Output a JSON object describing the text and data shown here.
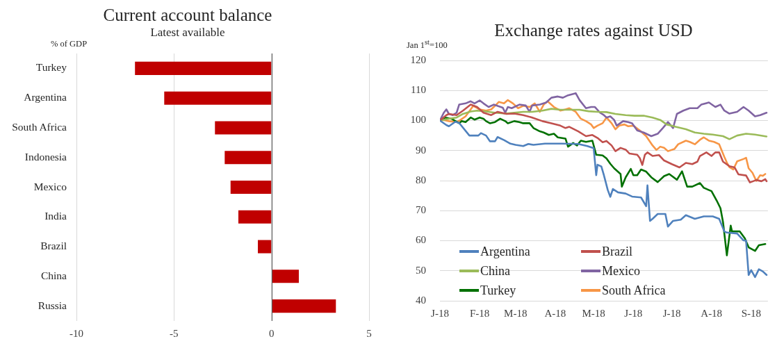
{
  "chart_data": [
    {
      "type": "bar",
      "orientation": "horizontal",
      "title": "Current account balance",
      "subtitle": "Latest available",
      "xlabel": "% of GDP",
      "categories": [
        "Turkey",
        "Argentina",
        "South Africa",
        "Indonesia",
        "Mexico",
        "India",
        "Brazil",
        "China",
        "Russia"
      ],
      "values": [
        -7.0,
        -5.5,
        -2.9,
        -2.4,
        -2.1,
        -1.7,
        -0.7,
        1.4,
        3.3
      ],
      "color": "#c00000",
      "xlim": [
        -10,
        5
      ],
      "xticks": [
        -10,
        -5,
        0,
        5
      ],
      "grid": "x"
    },
    {
      "type": "line",
      "title": "Exchange rates against USD",
      "ylabel": "Jan 1$^{st}$=100",
      "xlim": [
        "2018-01-01",
        "2018-09-14"
      ],
      "xticks": [
        {
          "value": "2018-01-01",
          "label": "J-18"
        },
        {
          "value": "2018-02-01",
          "label": "F-18"
        },
        {
          "value": "2018-03-01",
          "label": "M-18"
        },
        {
          "value": "2018-04-01",
          "label": "A-18"
        },
        {
          "value": "2018-05-01",
          "label": "M-18"
        },
        {
          "value": "2018-06-01",
          "label": "J-18"
        },
        {
          "value": "2018-07-01",
          "label": "J-18"
        },
        {
          "value": "2018-08-01",
          "label": "A-18"
        },
        {
          "value": "2018-09-01",
          "label": "S-18"
        }
      ],
      "ylim": [
        40,
        120
      ],
      "yticks": [
        40,
        50,
        60,
        70,
        80,
        90,
        100,
        110,
        120
      ],
      "grid": "y",
      "legend": "bottom left",
      "series": [
        {
          "name": "Argentina",
          "color": "#4f81bd",
          "x": [
            "2018-01-01",
            "2018-01-06",
            "2018-01-08",
            "2018-01-13",
            "2018-01-16",
            "2018-01-24",
            "2018-01-31",
            "2018-02-02",
            "2018-02-06",
            "2018-02-09",
            "2018-02-13",
            "2018-02-15",
            "2018-02-20",
            "2018-02-25",
            "2018-03-01",
            "2018-03-07",
            "2018-03-11",
            "2018-03-15",
            "2018-03-24",
            "2018-04-06",
            "2018-04-19",
            "2018-04-26",
            "2018-05-01",
            "2018-05-03",
            "2018-05-04",
            "2018-05-07",
            "2018-05-09",
            "2018-05-12",
            "2018-05-14",
            "2018-05-16",
            "2018-05-20",
            "2018-05-26",
            "2018-05-31",
            "2018-06-07",
            "2018-06-11",
            "2018-06-12",
            "2018-06-14",
            "2018-06-16",
            "2018-06-20",
            "2018-06-26",
            "2018-06-28",
            "2018-07-02",
            "2018-07-08",
            "2018-07-12",
            "2018-07-19",
            "2018-07-26",
            "2018-08-02",
            "2018-08-07",
            "2018-08-11",
            "2018-08-13",
            "2018-08-21",
            "2018-08-26",
            "2018-08-28",
            "2018-08-30",
            "2018-09-01",
            "2018-09-04",
            "2018-09-07",
            "2018-09-10",
            "2018-09-13"
          ],
          "values": [
            100,
            98.5,
            98.1,
            99.6,
            99.2,
            95,
            95,
            95.8,
            95,
            93.1,
            93.1,
            94.5,
            93.5,
            92.3,
            91.9,
            91.5,
            92.2,
            91.9,
            92.3,
            92.3,
            92.2,
            91.5,
            90.8,
            81.8,
            85.3,
            84.7,
            81.8,
            76.9,
            74.6,
            77.2,
            76.1,
            75.7,
            74.7,
            74.4,
            71.5,
            78.4,
            66.6,
            67.3,
            68.9,
            68.9,
            64.7,
            66.6,
            67,
            68.5,
            67.3,
            68.1,
            68.1,
            67.3,
            63.1,
            62.7,
            62.4,
            60.1,
            60,
            48.6,
            50.2,
            47.9,
            50.5,
            49.8,
            48.6
          ]
        },
        {
          "name": "Brazil",
          "color": "#c0504d",
          "x": [
            "2018-01-01",
            "2018-01-06",
            "2018-01-08",
            "2018-01-14",
            "2018-01-19",
            "2018-01-25",
            "2018-01-30",
            "2018-02-04",
            "2018-02-10",
            "2018-02-15",
            "2018-02-22",
            "2018-02-28",
            "2018-03-07",
            "2018-03-14",
            "2018-03-22",
            "2018-03-29",
            "2018-04-05",
            "2018-04-09",
            "2018-04-12",
            "2018-04-19",
            "2018-04-25",
            "2018-04-30",
            "2018-05-04",
            "2018-05-08",
            "2018-05-11",
            "2018-05-15",
            "2018-05-18",
            "2018-05-22",
            "2018-05-26",
            "2018-05-29",
            "2018-06-04",
            "2018-06-06",
            "2018-06-08",
            "2018-06-10",
            "2018-06-12",
            "2018-06-16",
            "2018-06-21",
            "2018-06-25",
            "2018-07-01",
            "2018-07-07",
            "2018-07-12",
            "2018-07-17",
            "2018-07-21",
            "2018-07-23",
            "2018-07-28",
            "2018-08-01",
            "2018-08-04",
            "2018-08-07",
            "2018-08-10",
            "2018-08-15",
            "2018-08-19",
            "2018-08-22",
            "2018-08-28",
            "2018-08-31",
            "2018-09-05",
            "2018-09-09",
            "2018-09-12",
            "2018-09-13"
          ],
          "values": [
            100,
            101.8,
            102.2,
            101.8,
            103.3,
            105.3,
            104.5,
            102.6,
            101.8,
            102.9,
            102.2,
            102.3,
            101.8,
            101,
            99.8,
            99.1,
            98.3,
            97.5,
            97.9,
            96.4,
            94.8,
            95.2,
            94.2,
            92.8,
            93.2,
            91.7,
            89.8,
            90.9,
            90.3,
            89,
            88.6,
            87.5,
            85.2,
            88.6,
            89.4,
            88.2,
            88.5,
            86.7,
            85.5,
            84.4,
            85.9,
            85.5,
            86.3,
            88.2,
            89.4,
            88.2,
            89.4,
            89.4,
            86.3,
            84.8,
            84.4,
            82.1,
            81.7,
            79.4,
            80.2,
            79.8,
            80.5,
            79.8
          ]
        },
        {
          "name": "China",
          "color": "#9bbb59",
          "x": [
            "2018-01-01",
            "2018-01-08",
            "2018-01-14",
            "2018-01-19",
            "2018-01-25",
            "2018-01-30",
            "2018-02-06",
            "2018-02-13",
            "2018-02-21",
            "2018-02-28",
            "2018-03-07",
            "2018-03-14",
            "2018-03-22",
            "2018-03-29",
            "2018-04-05",
            "2018-04-12",
            "2018-04-20",
            "2018-04-27",
            "2018-05-04",
            "2018-05-11",
            "2018-05-18",
            "2018-05-26",
            "2018-06-02",
            "2018-06-09",
            "2018-06-16",
            "2018-06-22",
            "2018-06-27",
            "2018-07-04",
            "2018-07-12",
            "2018-07-19",
            "2018-07-26",
            "2018-08-02",
            "2018-08-10",
            "2018-08-15",
            "2018-08-21",
            "2018-08-28",
            "2018-09-04",
            "2018-09-13"
          ],
          "values": [
            100,
            100.6,
            101,
            102.2,
            103,
            103.3,
            103,
            102.6,
            102.3,
            102.6,
            102.9,
            102.9,
            103.3,
            103.9,
            103.6,
            103.6,
            103.6,
            103.1,
            102.9,
            102.8,
            102.2,
            101.8,
            101.6,
            101.6,
            101,
            100.2,
            98.7,
            97.9,
            97.1,
            96,
            95.6,
            95.3,
            94.8,
            93.8,
            95,
            95.6,
            95.3,
            94.7
          ]
        },
        {
          "name": "Mexico",
          "color": "#8064a2",
          "x": [
            "2018-01-01",
            "2018-01-04",
            "2018-01-06",
            "2018-01-08",
            "2018-01-11",
            "2018-01-14",
            "2018-01-16",
            "2018-01-21",
            "2018-01-25",
            "2018-01-28",
            "2018-02-01",
            "2018-02-04",
            "2018-02-08",
            "2018-02-12",
            "2018-02-19",
            "2018-02-21",
            "2018-02-23",
            "2018-02-26",
            "2018-03-04",
            "2018-03-09",
            "2018-03-12",
            "2018-03-14",
            "2018-03-20",
            "2018-03-25",
            "2018-03-29",
            "2018-04-03",
            "2018-04-07",
            "2018-04-11",
            "2018-04-17",
            "2018-04-20",
            "2018-04-25",
            "2018-04-29",
            "2018-05-02",
            "2018-05-06",
            "2018-05-09",
            "2018-05-11",
            "2018-05-14",
            "2018-05-17",
            "2018-05-19",
            "2018-05-24",
            "2018-05-28",
            "2018-05-31",
            "2018-06-04",
            "2018-06-09",
            "2018-06-15",
            "2018-06-20",
            "2018-06-24",
            "2018-06-28",
            "2018-07-02",
            "2018-07-05",
            "2018-07-10",
            "2018-07-15",
            "2018-07-21",
            "2018-07-24",
            "2018-07-30",
            "2018-08-04",
            "2018-08-08",
            "2018-08-11",
            "2018-08-15",
            "2018-08-21",
            "2018-08-26",
            "2018-08-30",
            "2018-09-04",
            "2018-09-08",
            "2018-09-13"
          ],
          "values": [
            100,
            102.6,
            103.7,
            102.2,
            101.8,
            102.6,
            105.3,
            105.7,
            106.4,
            105.7,
            106.7,
            105.7,
            104.5,
            105.3,
            104.3,
            102.6,
            104.5,
            104.1,
            105.3,
            105,
            102.9,
            105,
            105.3,
            106,
            107.6,
            108,
            107.6,
            108.4,
            109.1,
            106.8,
            104.1,
            104.5,
            104.5,
            102.6,
            101.8,
            101,
            101.4,
            100.2,
            98.3,
            99.8,
            99.5,
            99.1,
            96.7,
            96,
            94.8,
            95.6,
            97.5,
            99.5,
            97.5,
            102.2,
            103.3,
            104.1,
            104.1,
            105.3,
            106,
            104.5,
            105.3,
            103.3,
            102.3,
            102.9,
            104.5,
            103.3,
            101.4,
            101.8,
            102.6
          ]
        },
        {
          "name": "Turkey",
          "color": "#007000",
          "x": [
            "2018-01-01",
            "2018-01-05",
            "2018-01-10",
            "2018-01-16",
            "2018-01-18",
            "2018-01-21",
            "2018-01-25",
            "2018-01-28",
            "2018-02-01",
            "2018-02-04",
            "2018-02-06",
            "2018-02-09",
            "2018-02-13",
            "2018-02-17",
            "2018-02-21",
            "2018-02-23",
            "2018-02-28",
            "2018-03-04",
            "2018-03-07",
            "2018-03-12",
            "2018-03-15",
            "2018-03-20",
            "2018-03-23",
            "2018-03-27",
            "2018-03-31",
            "2018-04-03",
            "2018-04-09",
            "2018-04-11",
            "2018-04-15",
            "2018-04-18",
            "2018-04-21",
            "2018-04-25",
            "2018-04-30",
            "2018-05-03",
            "2018-05-08",
            "2018-05-11",
            "2018-05-14",
            "2018-05-17",
            "2018-05-22",
            "2018-05-23",
            "2018-05-26",
            "2018-05-30",
            "2018-06-01",
            "2018-06-04",
            "2018-06-07",
            "2018-06-11",
            "2018-06-15",
            "2018-06-20",
            "2018-06-25",
            "2018-06-29",
            "2018-07-05",
            "2018-07-09",
            "2018-07-13",
            "2018-07-17",
            "2018-07-23",
            "2018-07-26",
            "2018-08-01",
            "2018-08-05",
            "2018-08-08",
            "2018-08-10",
            "2018-08-13",
            "2018-08-16",
            "2018-08-17",
            "2018-08-23",
            "2018-08-27",
            "2018-08-30",
            "2018-09-04",
            "2018-09-07",
            "2018-09-12"
          ],
          "values": [
            100,
            101,
            100.6,
            99.1,
            99.8,
            99.5,
            101,
            100.3,
            101,
            100.6,
            99.8,
            99.1,
            99.5,
            100.6,
            99.8,
            99.1,
            99.8,
            99.5,
            99.1,
            99.1,
            97.5,
            96.4,
            96,
            95.2,
            95.6,
            94.4,
            94,
            91.3,
            92.5,
            91.7,
            93.3,
            92.9,
            93.3,
            88.6,
            88.4,
            87.4,
            85.6,
            84.1,
            82.2,
            78,
            81.1,
            83.9,
            81.8,
            81.8,
            83.7,
            83,
            81.1,
            79.5,
            81.5,
            82.2,
            80.3,
            83.1,
            78,
            78,
            79.2,
            77.6,
            76.5,
            73.4,
            70.8,
            66.2,
            55.1,
            65,
            63.1,
            63.1,
            60.8,
            57.8,
            56.6,
            58.5,
            58.9
          ]
        },
        {
          "name": "South Africa",
          "color": "#f79646",
          "x": [
            "2018-01-01",
            "2018-01-04",
            "2018-01-08",
            "2018-01-14",
            "2018-01-17",
            "2018-01-21",
            "2018-01-25",
            "2018-01-27",
            "2018-02-01",
            "2018-02-06",
            "2018-02-10",
            "2018-02-13",
            "2018-02-16",
            "2018-02-20",
            "2018-02-23",
            "2018-02-27",
            "2018-03-03",
            "2018-03-07",
            "2018-03-12",
            "2018-03-16",
            "2018-03-20",
            "2018-03-23",
            "2018-03-26",
            "2018-03-31",
            "2018-04-05",
            "2018-04-09",
            "2018-04-12",
            "2018-04-17",
            "2018-04-21",
            "2018-04-25",
            "2018-04-29",
            "2018-05-01",
            "2018-05-04",
            "2018-05-08",
            "2018-05-11",
            "2018-05-15",
            "2018-05-18",
            "2018-05-21",
            "2018-05-25",
            "2018-05-28",
            "2018-06-01",
            "2018-06-06",
            "2018-06-11",
            "2018-06-16",
            "2018-06-19",
            "2018-06-22",
            "2018-06-25",
            "2018-06-28",
            "2018-07-03",
            "2018-07-06",
            "2018-07-12",
            "2018-07-15",
            "2018-07-19",
            "2018-07-23",
            "2018-07-26",
            "2018-07-30",
            "2018-08-03",
            "2018-08-07",
            "2018-08-11",
            "2018-08-13",
            "2018-08-15",
            "2018-08-18",
            "2018-08-21",
            "2018-08-26",
            "2018-08-28",
            "2018-08-30",
            "2018-09-02",
            "2018-09-05",
            "2018-09-08",
            "2018-09-10",
            "2018-09-12"
          ],
          "values": [
            100,
            100.2,
            99.8,
            99.5,
            100.2,
            101.4,
            103.7,
            104.9,
            103.7,
            103.3,
            103.7,
            104.9,
            106.2,
            105.7,
            106.8,
            105.7,
            104.1,
            104.9,
            104.5,
            105.7,
            102.9,
            105.3,
            106.4,
            104.5,
            103.3,
            103.7,
            104.1,
            102.9,
            100.6,
            99.8,
            98.7,
            97.5,
            98.3,
            99.1,
            101,
            99.1,
            97.1,
            98.3,
            98.7,
            98.1,
            98.3,
            96.7,
            94.8,
            91.7,
            90.2,
            91.3,
            90.9,
            89.8,
            90.5,
            92.1,
            93.3,
            92.9,
            92.1,
            93.6,
            94.4,
            93.3,
            92.9,
            92.1,
            87.9,
            86,
            84.5,
            83.7,
            86.4,
            87.2,
            87.6,
            84.1,
            82.6,
            79.9,
            81.8,
            81.6,
            82.2
          ]
        }
      ]
    }
  ]
}
